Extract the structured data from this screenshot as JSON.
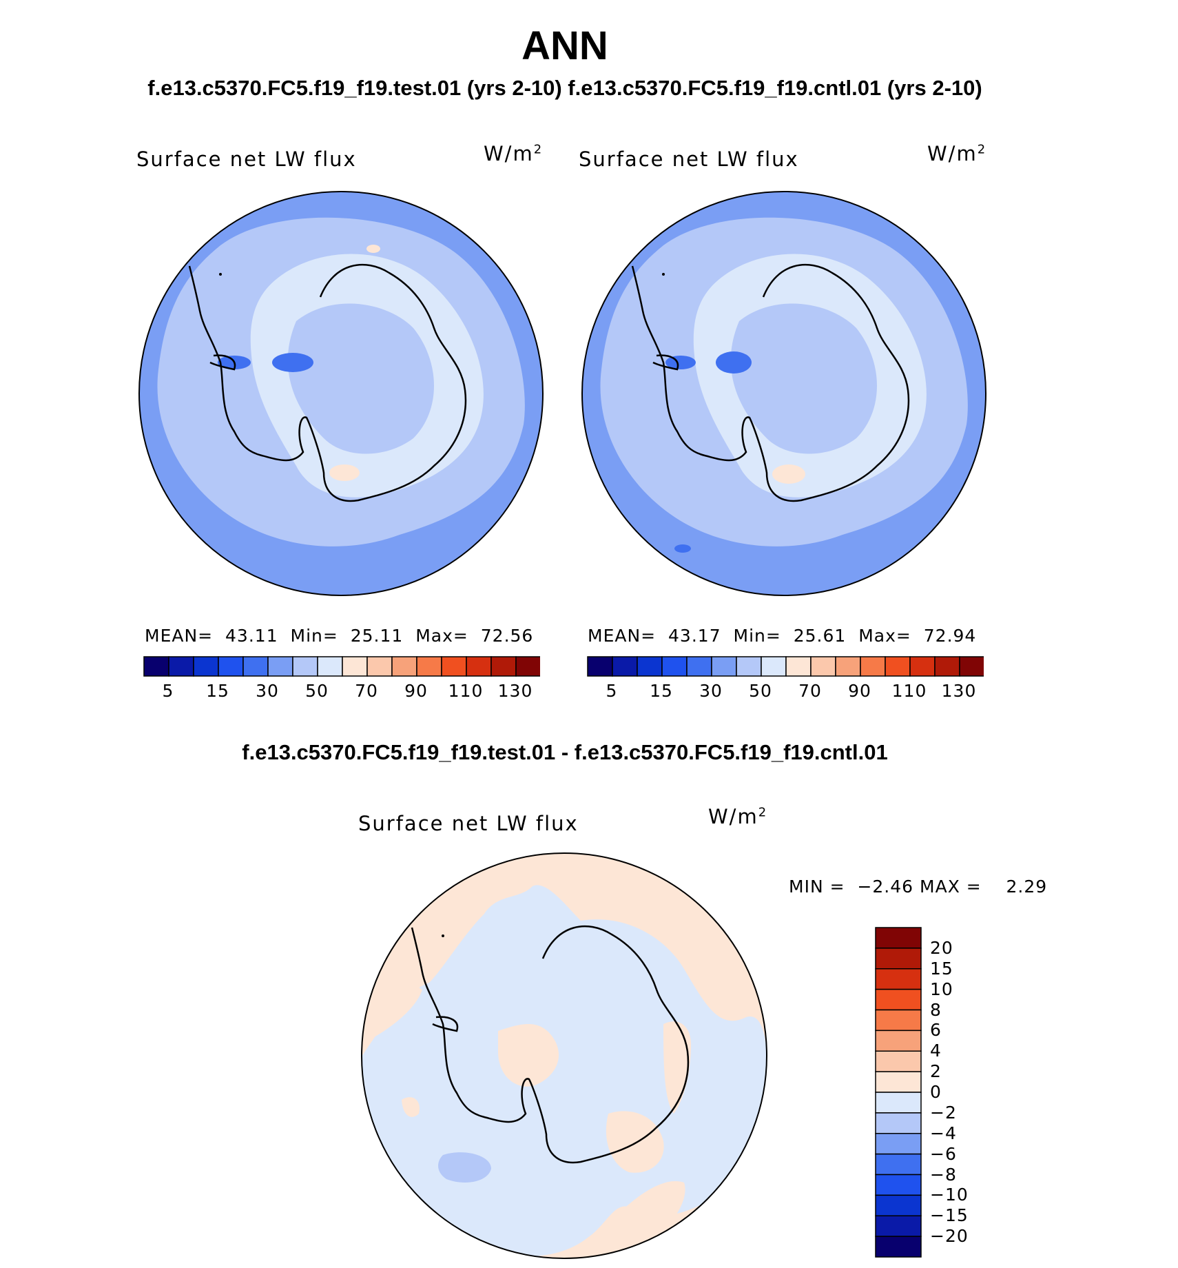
{
  "figure": {
    "title": "ANN",
    "subtitle": "f.e13.c5370.FC5.f19_f19.test.01 (yrs 2-10) f.e13.c5370.FC5.f19_f19.cntl.01 (yrs 2-10)",
    "diff_title": "f.e13.c5370.FC5.f19_f19.test.01 - f.e13.c5370.FC5.f19_f19.cntl.01"
  },
  "panels": [
    {
      "label": "Surface net LW flux",
      "units_base": "W/m",
      "units_exp": "2",
      "mean_label": "MEAN=",
      "mean": "43.11",
      "min_label": "Min=",
      "min": "25.11",
      "max_label": "Max=",
      "max": "72.56"
    },
    {
      "label": "Surface net LW flux",
      "units_base": "W/m",
      "units_exp": "2",
      "mean_label": "MEAN=",
      "mean": "43.17",
      "min_label": "Min=",
      "min": "25.61",
      "max_label": "Max=",
      "max": "72.94"
    }
  ],
  "diff_panel": {
    "label": "Surface net LW flux",
    "units_base": "W/m",
    "units_exp": "2",
    "min_label": "MIN =",
    "min": "−2.46",
    "max_label": "MAX =",
    "max": "2.29"
  },
  "abs_colorbar": {
    "colors": [
      "#08006e",
      "#0a1aa8",
      "#0b35d0",
      "#1f52ee",
      "#3f70f0",
      "#7a9ef4",
      "#b4c8f8",
      "#dbe8fb",
      "#fde6d6",
      "#fbc8ac",
      "#f7a27a",
      "#f67a48",
      "#f05020",
      "#d63010",
      "#b01a08",
      "#800505"
    ],
    "ticks": [
      "5",
      "15",
      "30",
      "50",
      "70",
      "90",
      "110",
      "130"
    ]
  },
  "diff_colorbar": {
    "colors": [
      "#800505",
      "#b01a08",
      "#d63010",
      "#f05020",
      "#f67a48",
      "#f7a27a",
      "#fbc8ac",
      "#fde6d6",
      "#dbe8fb",
      "#b4c8f8",
      "#7a9ef4",
      "#3f70f0",
      "#1f52ee",
      "#0b35d0",
      "#0a1aa8",
      "#08006e"
    ],
    "ticks": [
      "20",
      "15",
      "10",
      "8",
      "6",
      "4",
      "2",
      "0",
      "−2",
      "−4",
      "−6",
      "−8",
      "−10",
      "−15",
      "−20"
    ]
  },
  "map_fills": {
    "outer": "#7a9ef4",
    "ring": "#b4c8f8",
    "inner": "#dbe8fb",
    "low": "#3f70f0",
    "warm": "#fde6d6",
    "coast": "#000000"
  }
}
